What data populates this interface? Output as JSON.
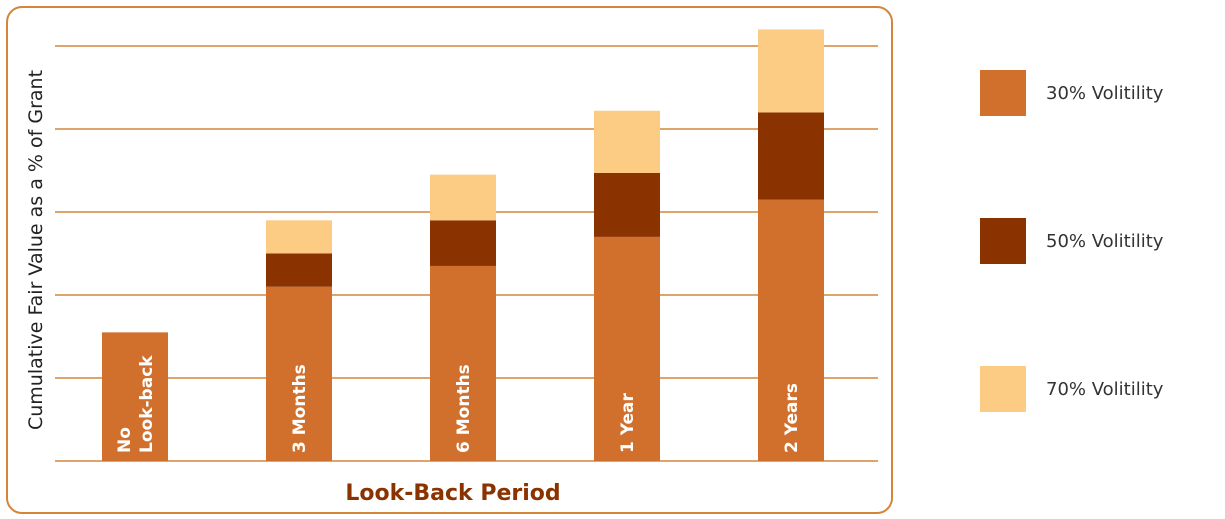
{
  "chart_data": {
    "type": "bar",
    "stacked": true,
    "orientation": "vertical",
    "title": "",
    "xlabel": "Look-Back Period",
    "ylabel": "Cumulative Fair Value as a % of Grant",
    "categories": [
      [
        "No",
        "Look-back"
      ],
      [
        "3 Months"
      ],
      [
        "6 Months"
      ],
      [
        "1 Year"
      ],
      [
        "2 Years"
      ]
    ],
    "series": [
      {
        "name": "30% Volitility",
        "color": "#d0702c",
        "values": [
          1.55,
          2.1,
          2.35,
          2.7,
          3.15
        ]
      },
      {
        "name": "50% Volitility",
        "color": "#8b3300",
        "values": [
          0,
          0.4,
          0.55,
          0.77,
          1.05
        ]
      },
      {
        "name": "70% Volitility",
        "color": "#fccc85",
        "values": [
          0,
          0.4,
          0.55,
          0.75,
          1.0
        ]
      }
    ],
    "ylim": [
      0,
      5.2
    ],
    "y_gridlines": [
      0,
      1,
      2,
      3,
      4,
      5
    ],
    "y_tick_labels": false,
    "grid": true,
    "legend": "right",
    "colors": {
      "frame": "#d4853a",
      "grid": "#d4853a",
      "axis_title": "#8b3300",
      "bar_label": "#ffffff"
    }
  }
}
